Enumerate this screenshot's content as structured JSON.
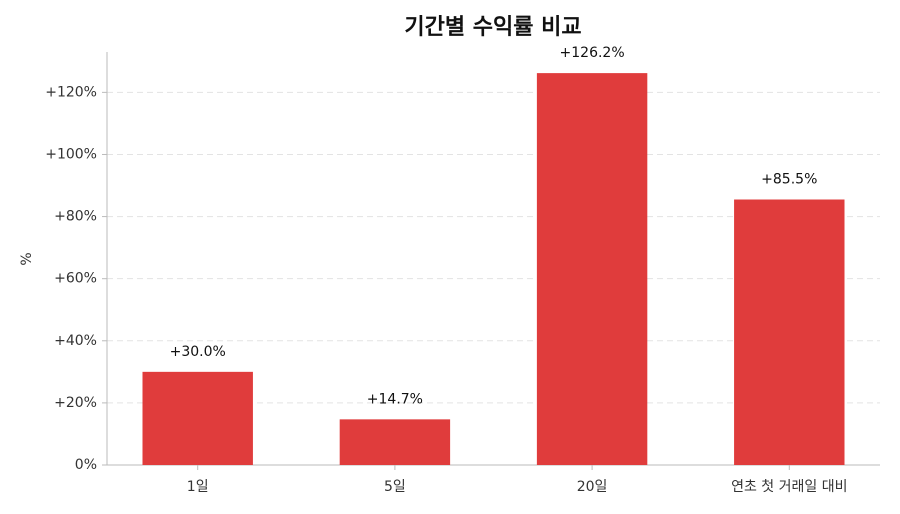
{
  "chart_data": {
    "type": "bar",
    "title": "기간별 수익률 비교",
    "y_label": "%",
    "categories": [
      "1일",
      "5일",
      "20일",
      "연초 첫 거래일 대비"
    ],
    "values": [
      30.0,
      14.7,
      126.2,
      85.5
    ],
    "value_labels": [
      "+30.0%",
      "+14.7%",
      "+126.2%",
      "+85.5%"
    ],
    "color": "#e03c3c",
    "ylim": [
      0,
      133
    ],
    "yticks": [
      {
        "value": 0,
        "label": "0%"
      },
      {
        "value": 20,
        "label": "+20%"
      },
      {
        "value": 40,
        "label": "+40%"
      },
      {
        "value": 60,
        "label": "+60%"
      },
      {
        "value": 80,
        "label": "+80%"
      },
      {
        "value": 100,
        "label": "+100%"
      },
      {
        "value": 120,
        "label": "+120%"
      }
    ],
    "grid": true
  }
}
